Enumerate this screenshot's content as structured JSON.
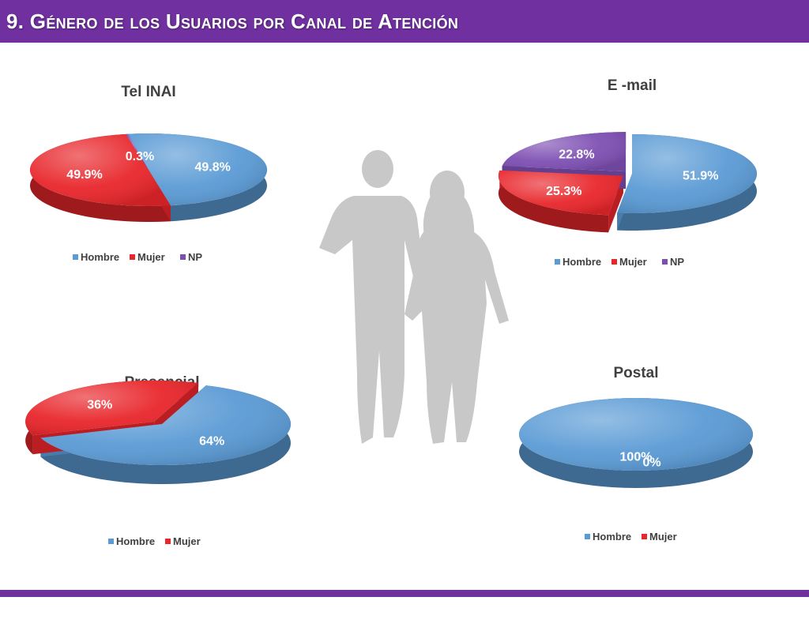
{
  "page": {
    "title": "9. Género de los Usuarios por Canal de Atención"
  },
  "colors": {
    "Hombre": "#5b9bd5",
    "Mujer": "#e8262b",
    "NP": "#7e4fb3",
    "accent": "#7030a0"
  },
  "chart_data": [
    {
      "type": "pie",
      "title": "Tel INAI",
      "slices": [
        {
          "label": "Hombre",
          "value": 49.8,
          "display": "49.8%"
        },
        {
          "label": "Mujer",
          "value": 49.9,
          "display": "49.9%"
        },
        {
          "label": "NP",
          "value": 0.3,
          "display": "0.3%"
        }
      ],
      "legend": [
        "Hombre",
        "Mujer",
        "NP"
      ],
      "legend_position": "bottom"
    },
    {
      "type": "pie",
      "title": "E -mail",
      "slices": [
        {
          "label": "Hombre",
          "value": 51.9,
          "display": "51.9%"
        },
        {
          "label": "Mujer",
          "value": 25.3,
          "display": "25.3%"
        },
        {
          "label": "NP",
          "value": 22.8,
          "display": "22.8%"
        }
      ],
      "legend": [
        "Hombre",
        "Mujer",
        "NP"
      ],
      "legend_position": "bottom"
    },
    {
      "type": "pie",
      "title": "Presencial",
      "slices": [
        {
          "label": "Hombre",
          "value": 64,
          "display": "64%"
        },
        {
          "label": "Mujer",
          "value": 36,
          "display": "36%"
        }
      ],
      "legend": [
        "Hombre",
        "Mujer"
      ],
      "legend_position": "bottom"
    },
    {
      "type": "pie",
      "title": "Postal",
      "slices": [
        {
          "label": "Hombre",
          "value": 100,
          "display": "100%"
        },
        {
          "label": "Mujer",
          "value": 0,
          "display": "0%"
        }
      ],
      "legend": [
        "Hombre",
        "Mujer"
      ],
      "legend_position": "bottom"
    }
  ]
}
